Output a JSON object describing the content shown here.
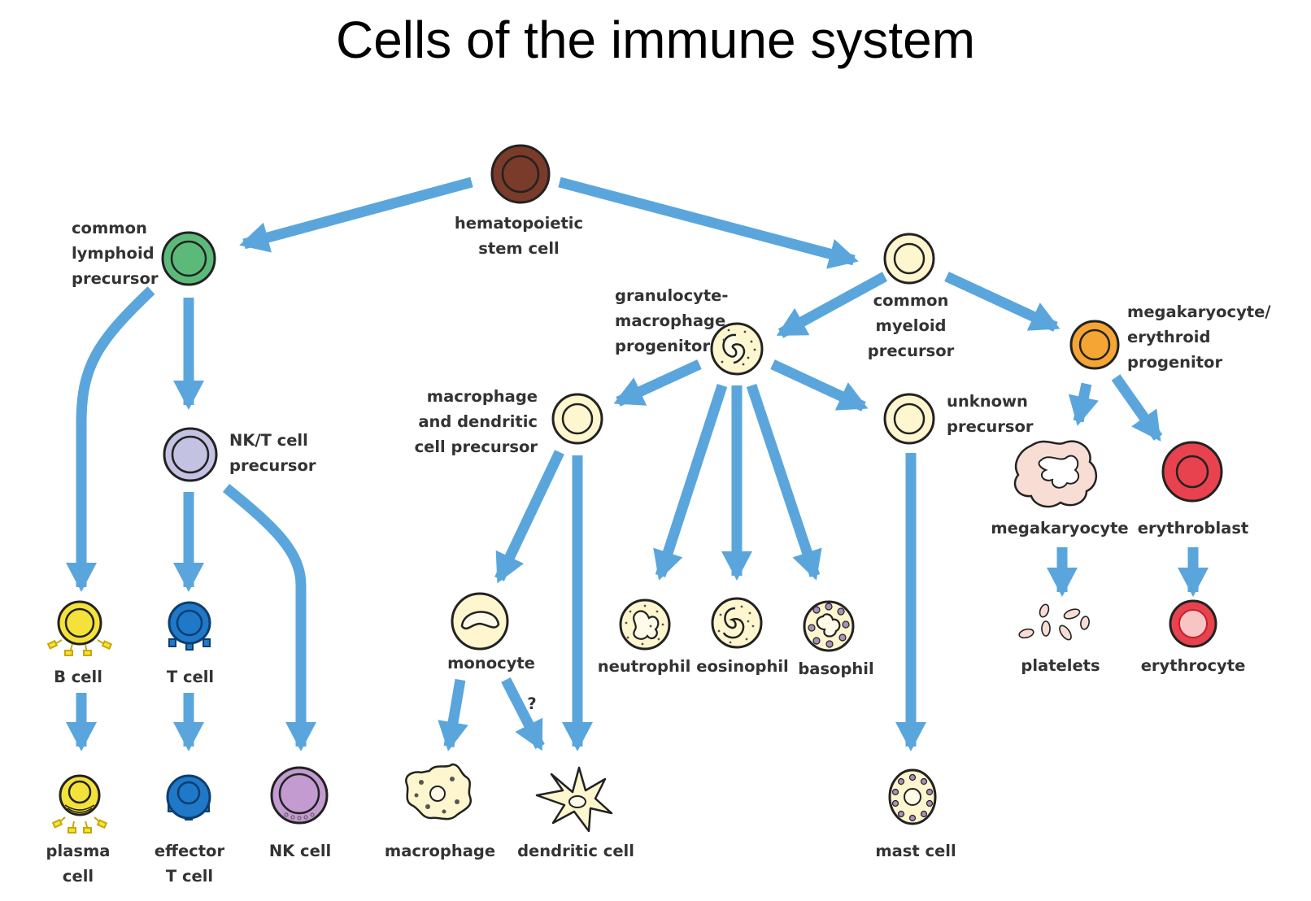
{
  "title": "Cells of the immune system",
  "colors": {
    "arrow": "#5aa6dc",
    "label": "#333333",
    "stem": "#7a3b2a",
    "lymphoid": "#5bba7a",
    "nkt_precursor": "#c4c2e2",
    "pale_yellow": "#fdf6cf",
    "megak_progenitor": "#f5a533",
    "erythroblast": "#e8424e",
    "b_cell": "#f4e23a",
    "t_cell": "#1f78c8",
    "nk_cell": "#c39bd0",
    "megakaryocyte": "#f8ddd5"
  },
  "labels": {
    "hsc": [
      "hematopoietic",
      "stem cell"
    ],
    "clp": [
      "common",
      "lymphoid",
      "precursor"
    ],
    "cmp": [
      "common",
      "myeloid",
      "precursor"
    ],
    "gmp": [
      "granulocyte-",
      "macrophage",
      "progenitor"
    ],
    "mep": [
      "megakaryocyte/",
      "erythroid",
      "progenitor"
    ],
    "nkt": [
      "NK/T cell",
      "precursor"
    ],
    "mdp": [
      "macrophage",
      "and dendritic",
      "cell precursor"
    ],
    "unknown": [
      "unknown",
      "precursor"
    ],
    "megakaryocyte": [
      "megakaryocyte"
    ],
    "erythroblast": [
      "erythroblast"
    ],
    "bcell": [
      "B cell"
    ],
    "tcell": [
      "T cell"
    ],
    "monocyte": [
      "monocyte"
    ],
    "question": [
      "?"
    ],
    "neutrophil": [
      "neutrophil"
    ],
    "eosinophil": [
      "eosinophil"
    ],
    "basophil": [
      "basophil"
    ],
    "platelets": [
      "platelets"
    ],
    "erythrocyte": [
      "erythrocyte"
    ],
    "plasma": [
      "plasma",
      "cell"
    ],
    "effector": [
      "effector",
      "T cell"
    ],
    "nkcell": [
      "NK cell"
    ],
    "macrophage": [
      "macrophage"
    ],
    "dendritic": [
      "dendritic cell"
    ],
    "mast": [
      "mast cell"
    ]
  }
}
